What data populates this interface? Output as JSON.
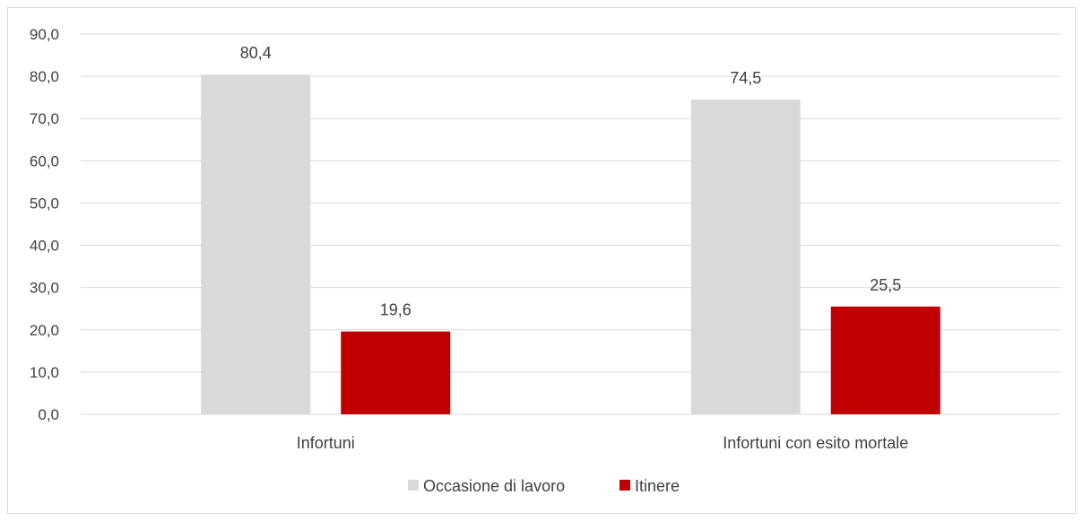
{
  "chart_data": {
    "type": "bar",
    "categories": [
      "Infortuni",
      "Infortuni con esito mortale"
    ],
    "series": [
      {
        "name": "Occasione di lavoro",
        "color": "#d9d9d9",
        "values": [
          80.4,
          74.5
        ],
        "labels": [
          "80,4",
          "74,5"
        ]
      },
      {
        "name": "Itinere",
        "color": "#c00000",
        "values": [
          19.6,
          25.5
        ],
        "labels": [
          "19,6",
          "25,5"
        ]
      }
    ],
    "ylim": [
      0,
      90
    ],
    "yticks": [
      {
        "value": 0,
        "label": "0,0"
      },
      {
        "value": 10,
        "label": "10,0"
      },
      {
        "value": 20,
        "label": "20,0"
      },
      {
        "value": 30,
        "label": "30,0"
      },
      {
        "value": 40,
        "label": "40,0"
      },
      {
        "value": 50,
        "label": "50,0"
      },
      {
        "value": 60,
        "label": "60,0"
      },
      {
        "value": 70,
        "label": "70,0"
      },
      {
        "value": 80,
        "label": "80,0"
      },
      {
        "value": 90,
        "label": "90,0"
      }
    ],
    "grid": true,
    "legend": "bottom-center",
    "gridline_color": "#d9d9d9"
  }
}
